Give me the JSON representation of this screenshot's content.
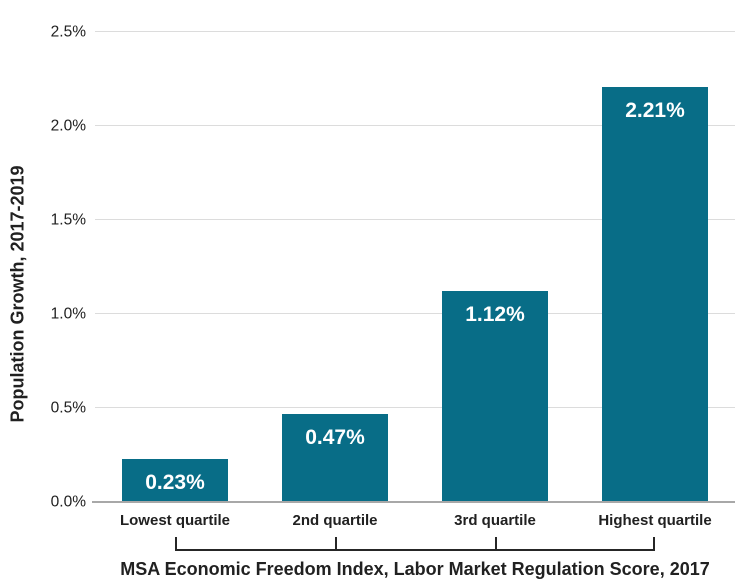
{
  "chart_data": {
    "type": "bar",
    "categories": [
      "Lowest quartile",
      "2nd quartile",
      "3rd quartile",
      "Highest quartile"
    ],
    "values": [
      0.23,
      0.47,
      1.12,
      2.21
    ],
    "value_labels": [
      "0.23%",
      "0.47%",
      "1.12%",
      "2.21%"
    ],
    "xlabel": "MSA Economic Freedom Index, Labor Market Regulation Score, 2017",
    "ylabel": "Population Growth, 2017-2019",
    "ylim": [
      0,
      2.5
    ],
    "y_ticks": [
      {
        "value": 0.0,
        "label": "0.0%"
      },
      {
        "value": 0.5,
        "label": "0.5%"
      },
      {
        "value": 1.0,
        "label": "1.0%"
      },
      {
        "value": 1.5,
        "label": "1.5%"
      },
      {
        "value": 2.0,
        "label": "2.0%"
      },
      {
        "value": 2.5,
        "label": "2.5%"
      }
    ],
    "grid": "horizontal",
    "legend": false,
    "colors": {
      "bar": "#086d87",
      "gridline": "#dcdcdc",
      "baseline": "#a8a8a8",
      "text": "#212121",
      "bar_label": "#ffffff",
      "bracket": "#262626",
      "background": "#ffffff"
    }
  }
}
